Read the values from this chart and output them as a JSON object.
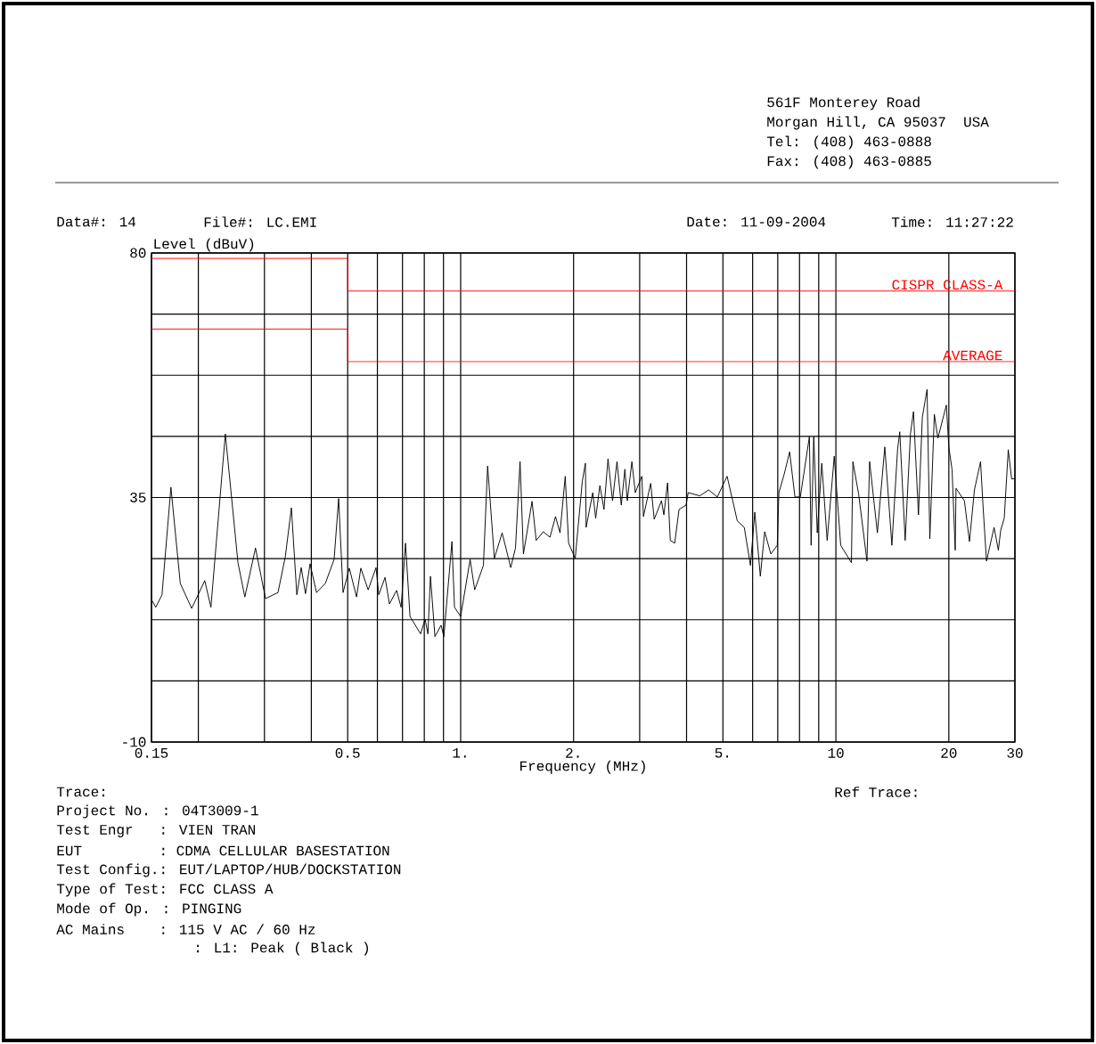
{
  "chart_data": {
    "type": "line",
    "xlabel": "Frequency (MHz)",
    "ylabel": "Level (dBuV)",
    "log": "x",
    "grid": true,
    "xlim": [
      0.15,
      30
    ],
    "ylim": [
      -10,
      80
    ],
    "xticks": [
      0.15,
      {
        "value": 0.2,
        "label": null
      },
      {
        "value": 0.3,
        "label": null
      },
      {
        "value": 0.4,
        "label": null
      },
      0.5,
      {
        "value": 0.6,
        "label": null
      },
      {
        "value": 0.7,
        "label": null
      },
      {
        "value": 0.8,
        "label": null
      },
      {
        "value": 0.9,
        "label": null
      },
      {
        "value": 1,
        "label": "1."
      },
      {
        "value": 2,
        "label": "2."
      },
      {
        "value": 3,
        "label": null
      },
      {
        "value": 4,
        "label": null
      },
      {
        "value": 5,
        "label": "5."
      },
      {
        "value": 6,
        "label": null
      },
      {
        "value": 7,
        "label": null
      },
      {
        "value": 8,
        "label": null
      },
      {
        "value": 9,
        "label": null
      },
      10,
      20,
      30
    ],
    "yticks": [
      -10,
      {
        "value": 1.25,
        "label": null
      },
      {
        "value": 12.5,
        "label": null
      },
      {
        "value": 23.75,
        "label": null
      },
      35,
      {
        "value": 46.25,
        "label": null
      },
      {
        "value": 57.5,
        "label": null
      },
      {
        "value": 68.75,
        "label": null
      },
      80
    ],
    "series": [
      {
        "color": "#000000",
        "x": [
          0.15,
          0.154,
          0.16,
          0.169,
          0.179,
          0.192,
          0.208,
          0.216,
          0.236,
          0.255,
          0.266,
          0.284,
          0.302,
          0.326,
          0.341,
          0.354,
          0.366,
          0.376,
          0.386,
          0.397,
          0.413,
          0.436,
          0.46,
          0.473,
          0.486,
          0.505,
          0.528,
          0.542,
          0.567,
          0.595,
          0.605,
          0.629,
          0.646,
          0.675,
          0.694,
          0.713,
          0.733,
          0.782,
          0.804,
          0.818,
          0.831,
          0.854,
          0.887,
          0.902,
          0.948,
          0.963,
          1.0,
          1.06,
          1.09,
          1.15,
          1.18,
          1.23,
          1.29,
          1.36,
          1.4,
          1.44,
          1.47,
          1.51,
          1.55,
          1.59,
          1.66,
          1.73,
          1.79,
          1.84,
          1.9,
          1.94,
          2.02,
          2.11,
          2.15,
          2.16,
          2.25,
          2.29,
          2.35,
          2.41,
          2.47,
          2.54,
          2.61,
          2.68,
          2.74,
          2.78,
          2.86,
          2.92,
          3.04,
          3.07,
          3.21,
          3.28,
          3.43,
          3.48,
          3.56,
          3.62,
          3.72,
          3.82,
          3.99,
          4.04,
          4.34,
          4.58,
          4.83,
          5.13,
          5.31,
          5.46,
          5.7,
          5.92,
          6.08,
          6.29,
          6.46,
          6.71,
          6.98,
          7.05,
          7.29,
          7.53,
          7.78,
          8.04,
          8.5,
          8.59,
          8.73,
          8.92,
          9.17,
          9.48,
          9.9,
          10.3,
          11.0,
          11.1,
          11.5,
          12.1,
          12.3,
          12.9,
          13.5,
          14.1,
          14.6,
          14.8,
          15.3,
          15.8,
          16.1,
          16.6,
          17.0,
          17.5,
          17.8,
          18.3,
          18.7,
          19.7,
          20.0,
          20.4,
          20.8,
          20.9,
          22.0,
          22.7,
          23.4,
          24.3,
          24.7,
          25.2,
          26.4,
          27.1,
          27.5,
          28.1,
          28.8,
          29.4,
          30.0
        ],
        "values": [
          16.2,
          14.8,
          17.1,
          36.9,
          19.2,
          14.6,
          19.7,
          14.8,
          46.7,
          23.0,
          16.7,
          25.7,
          16.4,
          17.5,
          24.1,
          33.1,
          17.1,
          22.1,
          17.3,
          22.8,
          17.5,
          19.2,
          23.6,
          34.8,
          17.5,
          22.0,
          16.7,
          22.0,
          18.0,
          22.1,
          17.1,
          20.3,
          15.4,
          17.9,
          14.8,
          26.6,
          13.1,
          9.9,
          12.6,
          9.9,
          20.5,
          9.4,
          11.5,
          9.4,
          26.9,
          14.8,
          13.1,
          23.6,
          18.0,
          22.5,
          40.8,
          23.8,
          28.5,
          22.1,
          25.7,
          41.6,
          24.6,
          29.5,
          34.3,
          27.1,
          28.7,
          27.7,
          31.5,
          28.5,
          38.9,
          26.6,
          23.8,
          38.0,
          41.3,
          29.5,
          35.9,
          31.2,
          37.2,
          32.8,
          42.1,
          34.4,
          41.6,
          33.6,
          40.2,
          34.4,
          41.6,
          35.9,
          38.9,
          31.5,
          37.6,
          31.0,
          34.4,
          31.8,
          37.7,
          27.1,
          26.6,
          32.8,
          33.6,
          35.9,
          35.3,
          36.4,
          35.1,
          38.9,
          34.4,
          30.7,
          29.5,
          22.5,
          32.3,
          20.5,
          28.7,
          24.6,
          26.2,
          35.9,
          39.4,
          43.4,
          35.1,
          35.1,
          46.2,
          26.2,
          46.2,
          28.5,
          41.3,
          27.1,
          42.6,
          26.2,
          23.0,
          41.6,
          35.6,
          23.3,
          41.6,
          28.5,
          44.3,
          26.2,
          43.8,
          47.1,
          27.1,
          46.7,
          50.8,
          31.8,
          49.8,
          54.9,
          27.4,
          50.3,
          45.9,
          52.0,
          44.3,
          40.1,
          25.3,
          36.7,
          34.4,
          26.9,
          36.4,
          41.6,
          32.8,
          23.3,
          29.5,
          25.3,
          29.0,
          31.2,
          43.8,
          38.4,
          38.5
        ]
      },
      {
        "name": "CISPR CLASS-A",
        "color": "#ff0000",
        "x": [
          0.15,
          0.5,
          0.5,
          30
        ],
        "values": [
          79,
          79,
          73,
          73
        ]
      },
      {
        "name": "AVERAGE",
        "color": "#ff0000",
        "x": [
          0.15,
          0.5,
          0.5,
          30
        ],
        "values": [
          66,
          66,
          60,
          60
        ]
      }
    ],
    "annotations": [
      "561F Monterey Road",
      "Morgan Hill, CA 95037  USA",
      "Tel: (408) 463-0888",
      "Fax: (408) 463-0885",
      "Data#: 14",
      "File#: LC.EMI",
      "Date: 11-09-2004",
      "Time: 11:27:22",
      "Trace:",
      "Ref Trace:",
      "Project No. : 04T3009-1",
      "Test Engr   : VIEN TRAN",
      "EUT         : CDMA CELLULAR BASESTATION",
      "Test Config.: EUT/LAPTOP/HUB/DOCKSTATION",
      "Type of Test: FCC CLASS A",
      "Mode of Op. : PINGING",
      "AC Mains    : 115 V AC / 60 Hz",
      ": L1: Peak ( Black )"
    ]
  }
}
